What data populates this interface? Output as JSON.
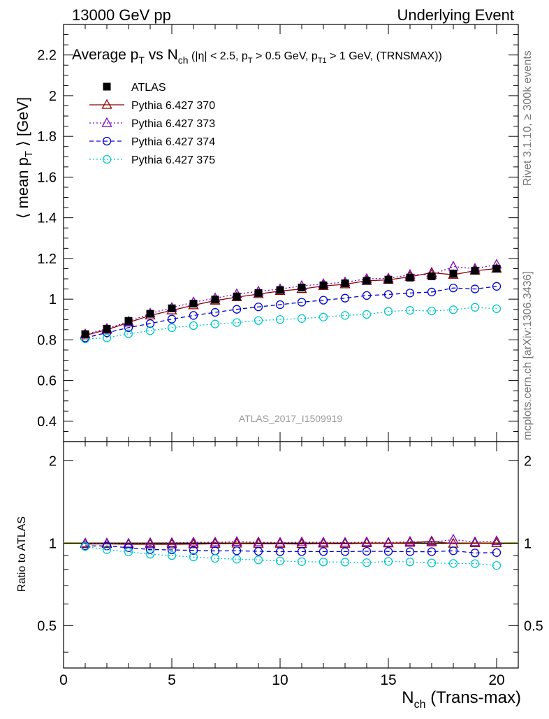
{
  "header": {
    "left": "13000 GeV pp",
    "right": "Underlying Event"
  },
  "side_labels": {
    "top": "Rivet 3.1.10, ≥ 300k events",
    "bottom": "mcplots.cern.ch [arXiv:1306.3436]"
  },
  "watermark": "ATLAS_2017_I1509919",
  "chart_data": [
    {
      "type": "scatter",
      "title_parts": {
        "main": "Average p",
        "main_sub": "T",
        "vs": " vs N",
        "vs_sub": "ch",
        "cut1": " (|η| < 2.5, p",
        "cut1_sub": "T",
        "cut2": " > 0.5 GeV, p",
        "cut2_sub": "T1",
        "cut3": " > 1 GeV, (TRNSMAX))"
      },
      "ylabel_parts": {
        "pre": "⟨ mean p",
        "sub": "T",
        "post": " ⟩ [GeV]"
      },
      "xlim": [
        0,
        21
      ],
      "ylim": [
        0.3,
        2.35
      ],
      "ytick_labels": [
        "0.4",
        "0.6",
        "0.8",
        "1",
        "1.2",
        "1.4",
        "1.6",
        "1.8",
        "2",
        "2.2"
      ],
      "x": [
        1,
        2,
        3,
        4,
        5,
        6,
        7,
        8,
        9,
        10,
        11,
        12,
        13,
        14,
        15,
        16,
        17,
        18,
        19,
        20
      ],
      "legend_position": "top-left",
      "series": [
        {
          "name": "ATLAS",
          "color": "#000000",
          "marker": "filled-square",
          "line": "none",
          "values": [
            0.828,
            0.855,
            0.893,
            0.928,
            0.955,
            0.978,
            0.998,
            1.013,
            1.03,
            1.045,
            1.057,
            1.068,
            1.078,
            1.09,
            1.096,
            1.106,
            1.112,
            1.125,
            1.14,
            1.15
          ]
        },
        {
          "name": "Pythia 6.427 370",
          "color": "#8b0000",
          "marker": "open-triangle",
          "line": "solid",
          "values": [
            0.822,
            0.85,
            0.885,
            0.92,
            0.945,
            0.97,
            0.993,
            1.01,
            1.025,
            1.04,
            1.05,
            1.065,
            1.073,
            1.09,
            1.095,
            1.11,
            1.13,
            1.12,
            1.14,
            1.15
          ]
        },
        {
          "name": "Pythia 6.427 373",
          "color": "#8000c0",
          "marker": "open-triangle",
          "line": "dotted",
          "values": [
            0.828,
            0.855,
            0.89,
            0.93,
            0.958,
            0.985,
            1.005,
            1.025,
            1.038,
            1.05,
            1.065,
            1.075,
            1.083,
            1.1,
            1.102,
            1.12,
            1.12,
            1.16,
            1.15,
            1.17
          ]
        },
        {
          "name": "Pythia 6.427 374",
          "color": "#0000d0",
          "marker": "open-circle",
          "line": "dashed",
          "values": [
            0.81,
            0.835,
            0.86,
            0.88,
            0.902,
            0.92,
            0.935,
            0.95,
            0.962,
            0.973,
            0.985,
            0.995,
            1.005,
            1.018,
            1.023,
            1.03,
            1.035,
            1.055,
            1.05,
            1.063
          ]
        },
        {
          "name": "Pythia 6.427 375",
          "color": "#00c8c8",
          "marker": "open-circle",
          "line": "dotted",
          "values": [
            0.805,
            0.81,
            0.83,
            0.845,
            0.86,
            0.87,
            0.878,
            0.885,
            0.895,
            0.9,
            0.905,
            0.912,
            0.92,
            0.925,
            0.94,
            0.945,
            0.942,
            0.948,
            0.96,
            0.953
          ]
        }
      ]
    },
    {
      "type": "scatter",
      "ylabel": "Ratio to ATLAS",
      "xlabel_parts": {
        "pre": "N",
        "sub": "ch",
        "post": " (Trans-max)"
      },
      "xlim": [
        0,
        21
      ],
      "ylim": [
        0.35,
        2.35
      ],
      "xtick_labels": [
        "0",
        "5",
        "10",
        "15",
        "20"
      ],
      "ytick_labels": [
        "0.5",
        "1",
        "2"
      ],
      "reference_band": {
        "color": "#ffff66",
        "line_color": "#000000",
        "value": 1.0
      },
      "x": [
        1,
        2,
        3,
        4,
        5,
        6,
        7,
        8,
        9,
        10,
        11,
        12,
        13,
        14,
        15,
        16,
        17,
        18,
        19,
        20
      ],
      "series": [
        {
          "name": "Pythia 6.427 370",
          "color": "#8b0000",
          "marker": "open-triangle",
          "line": "solid",
          "values": [
            0.993,
            0.994,
            0.991,
            0.991,
            0.99,
            0.992,
            0.995,
            0.997,
            0.995,
            0.995,
            0.993,
            0.997,
            0.995,
            1.0,
            0.999,
            1.004,
            1.016,
            0.996,
            1.0,
            1.0
          ]
        },
        {
          "name": "Pythia 6.427 373",
          "color": "#8000c0",
          "marker": "open-triangle",
          "line": "dotted",
          "values": [
            1.0,
            1.0,
            0.997,
            1.002,
            1.003,
            1.007,
            1.007,
            1.012,
            1.008,
            1.005,
            1.008,
            1.007,
            1.005,
            1.009,
            1.005,
            1.013,
            1.007,
            1.031,
            1.009,
            1.017
          ]
        },
        {
          "name": "Pythia 6.427 374",
          "color": "#0000d0",
          "marker": "open-circle",
          "line": "dashed",
          "values": [
            0.978,
            0.977,
            0.963,
            0.948,
            0.945,
            0.941,
            0.937,
            0.938,
            0.934,
            0.931,
            0.932,
            0.932,
            0.932,
            0.934,
            0.933,
            0.931,
            0.931,
            0.938,
            0.921,
            0.924
          ]
        },
        {
          "name": "Pythia 6.427 375",
          "color": "#00c8c8",
          "marker": "open-circle",
          "line": "dotted",
          "values": [
            0.972,
            0.947,
            0.929,
            0.911,
            0.901,
            0.89,
            0.88,
            0.874,
            0.869,
            0.861,
            0.856,
            0.854,
            0.853,
            0.849,
            0.858,
            0.854,
            0.847,
            0.843,
            0.842,
            0.829
          ]
        }
      ]
    }
  ]
}
